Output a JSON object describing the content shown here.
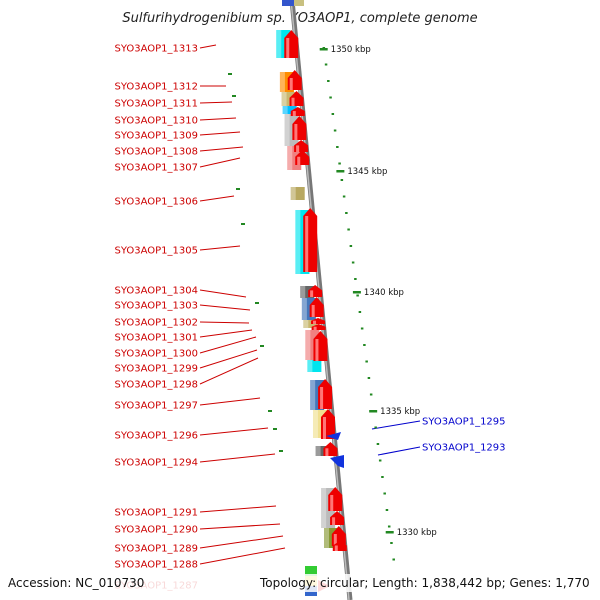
{
  "title": "Sulfurihydrogenibium sp. YO3AOP1, complete genome",
  "footer": {
    "accession": "Accession: NC_010730",
    "topology": "Topology: circular; Length: 1,838,442 bp; Genes: 1,770"
  },
  "colors": {
    "reverse_label": "#cc0000",
    "forward_label": "#0000cc",
    "ruler_tick": "#228822",
    "backbone": "#888888",
    "arrow": "#ee0000",
    "arrow_blue": "#1133dd"
  },
  "kbp_marks": [
    "1350 kbp",
    "1345 kbp",
    "1340 kbp",
    "1335 kbp",
    "1330 kbp"
  ],
  "genes_left": [
    {
      "label": "SYO3AOP1_1313"
    },
    {
      "label": "SYO3AOP1_1312"
    },
    {
      "label": "SYO3AOP1_1311"
    },
    {
      "label": "SYO3AOP1_1310"
    },
    {
      "label": "SYO3AOP1_1309"
    },
    {
      "label": "SYO3AOP1_1308"
    },
    {
      "label": "SYO3AOP1_1307"
    },
    {
      "label": "SYO3AOP1_1306"
    },
    {
      "label": "SYO3AOP1_1305"
    },
    {
      "label": "SYO3AOP1_1304"
    },
    {
      "label": "SYO3AOP1_1303"
    },
    {
      "label": "SYO3AOP1_1302"
    },
    {
      "label": "SYO3AOP1_1301"
    },
    {
      "label": "SYO3AOP1_1300"
    },
    {
      "label": "SYO3AOP1_1299"
    },
    {
      "label": "SYO3AOP1_1298"
    },
    {
      "label": "SYO3AOP1_1297"
    },
    {
      "label": "SYO3AOP1_1296"
    },
    {
      "label": "SYO3AOP1_1294"
    },
    {
      "label": "SYO3AOP1_1291"
    },
    {
      "label": "SYO3AOP1_1290"
    },
    {
      "label": "SYO3AOP1_1289"
    },
    {
      "label": "SYO3AOP1_1288"
    },
    {
      "label": "SYO3AOP1_1287"
    }
  ],
  "genes_right": [
    {
      "label": "SYO3AOP1_1295"
    },
    {
      "label": "SYO3AOP1_1293"
    }
  ]
}
